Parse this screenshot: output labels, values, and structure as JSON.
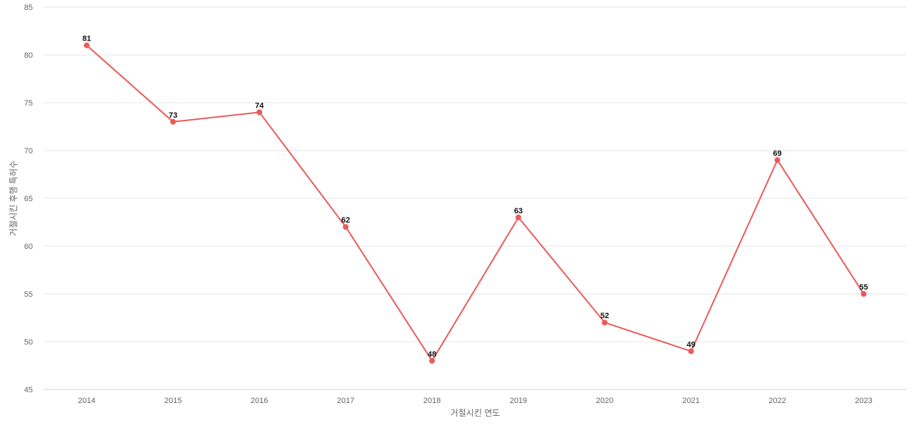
{
  "chart_data": {
    "type": "line",
    "title": "",
    "xlabel": "거절시킨 연도",
    "ylabel": "거절시킨 후행 특허수",
    "categories": [
      "2014",
      "2015",
      "2016",
      "2017",
      "2018",
      "2019",
      "2020",
      "2021",
      "2022",
      "2023"
    ],
    "series": [
      {
        "name": "",
        "color": "#eb5a5a",
        "values": [
          81,
          73,
          74,
          62,
          48,
          63,
          52,
          49,
          69,
          55
        ]
      }
    ],
    "ylim": [
      45,
      85
    ],
    "yticks": [
      45,
      50,
      55,
      60,
      65,
      70,
      75,
      80,
      85
    ],
    "grid": true,
    "legend": "none",
    "data_labels": true
  }
}
